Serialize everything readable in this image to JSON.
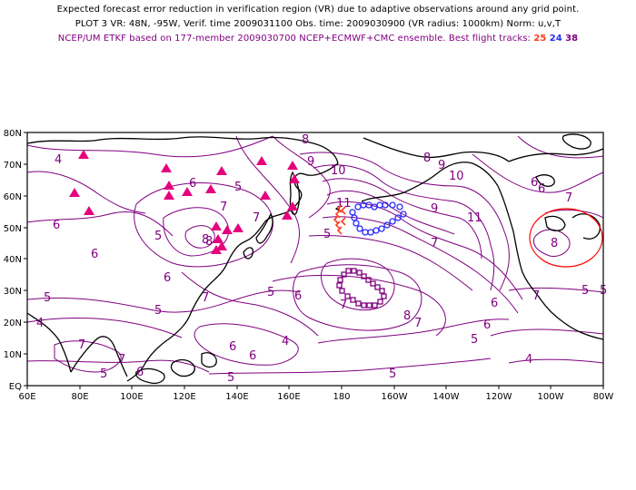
{
  "header": {
    "line1": "Expected forecast error reduction in verification region (VR) due to adaptive observations around any grid point.",
    "line2": "PLOT 3 VR: 48N, -95W, Verif. time 2009031100 Obs. time: 2009030900 (VR radius: 1000km) Norm: u,v,T",
    "line3_prefix": "NCEP/UM ETKF based on 177-member 2009030700 NCEP+ECMWF+CMC ensemble. Best flight tracks:",
    "track_a": "25",
    "track_b": "24",
    "track_c": "38"
  },
  "map": {
    "lon_labels": [
      "60E",
      "80E",
      "100E",
      "120E",
      "140E",
      "160E",
      "180",
      "160W",
      "140W",
      "120W",
      "100W",
      "80W"
    ],
    "lat_labels": [
      "EQ",
      "10N",
      "20N",
      "30N",
      "40N",
      "50N",
      "60N",
      "70N",
      "80N"
    ],
    "colors": {
      "contour": "#800080",
      "coast": "#000000",
      "track_25": "#ff3c1e",
      "track_24": "#2a2aff",
      "track_38": "#800080",
      "raob": "#e6007e",
      "vr_circle": "#ff0000"
    },
    "contour_labels": [
      "8",
      "7",
      "6",
      "5",
      "4",
      "9",
      "10",
      "11",
      "9",
      "10",
      "11",
      "9",
      "8",
      "7",
      "6",
      "5",
      "8",
      "7",
      "6",
      "5",
      "4",
      "8",
      "6",
      "5",
      "4",
      "8",
      "7",
      "6",
      "5",
      "7",
      "6",
      "5",
      "5",
      "7",
      "6",
      "5",
      "5",
      "6",
      "5",
      "4",
      "7",
      "5",
      "5",
      "6",
      "7",
      "7",
      "6",
      "8",
      "6",
      "7",
      "6"
    ]
  }
}
